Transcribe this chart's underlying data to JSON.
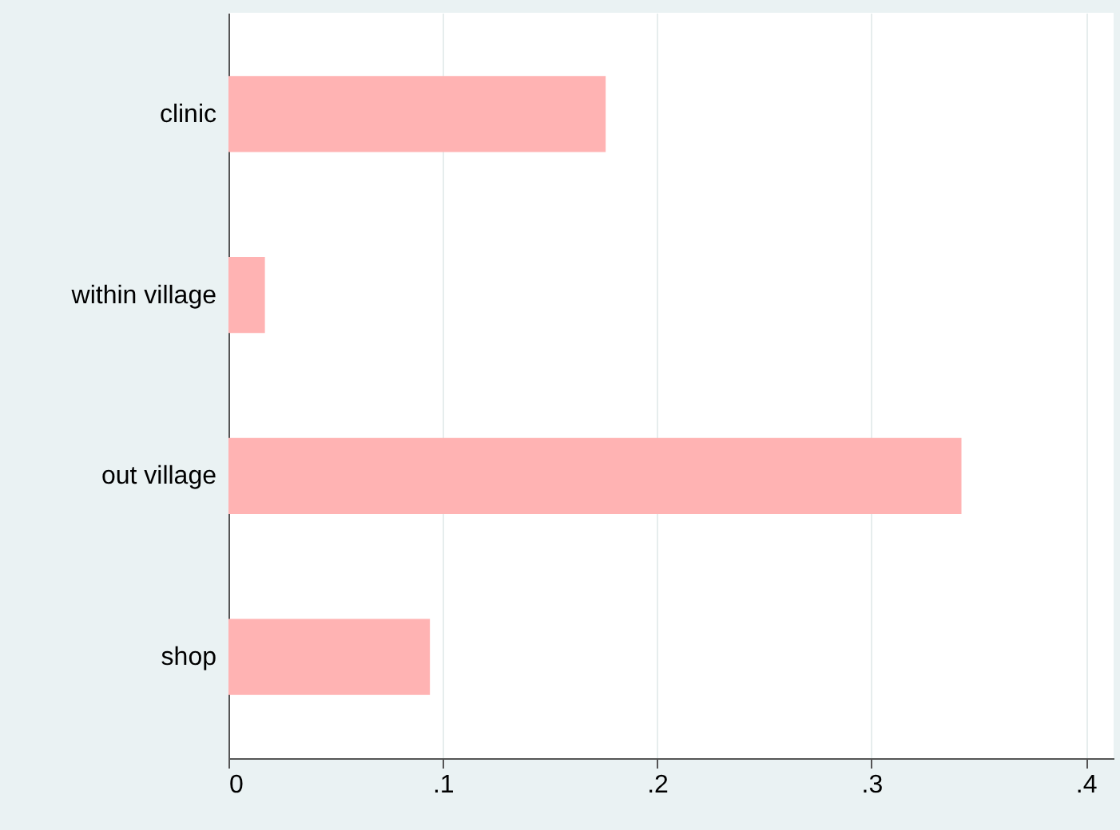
{
  "chart_data": {
    "type": "bar",
    "orientation": "horizontal",
    "categories": [
      "clinic",
      "within village",
      "out village",
      "shop"
    ],
    "values": [
      0.176,
      0.017,
      0.342,
      0.094
    ],
    "color": "#ffb3b3",
    "xlim": [
      0,
      0.413
    ],
    "xticks": [
      0,
      {
        "value": 0.1,
        "label": ".1"
      },
      {
        "value": 0.2,
        "label": ".2"
      },
      {
        "value": 0.3,
        "label": ".3"
      },
      {
        "value": 0.4,
        "label": ".4"
      }
    ],
    "grid": "x"
  }
}
